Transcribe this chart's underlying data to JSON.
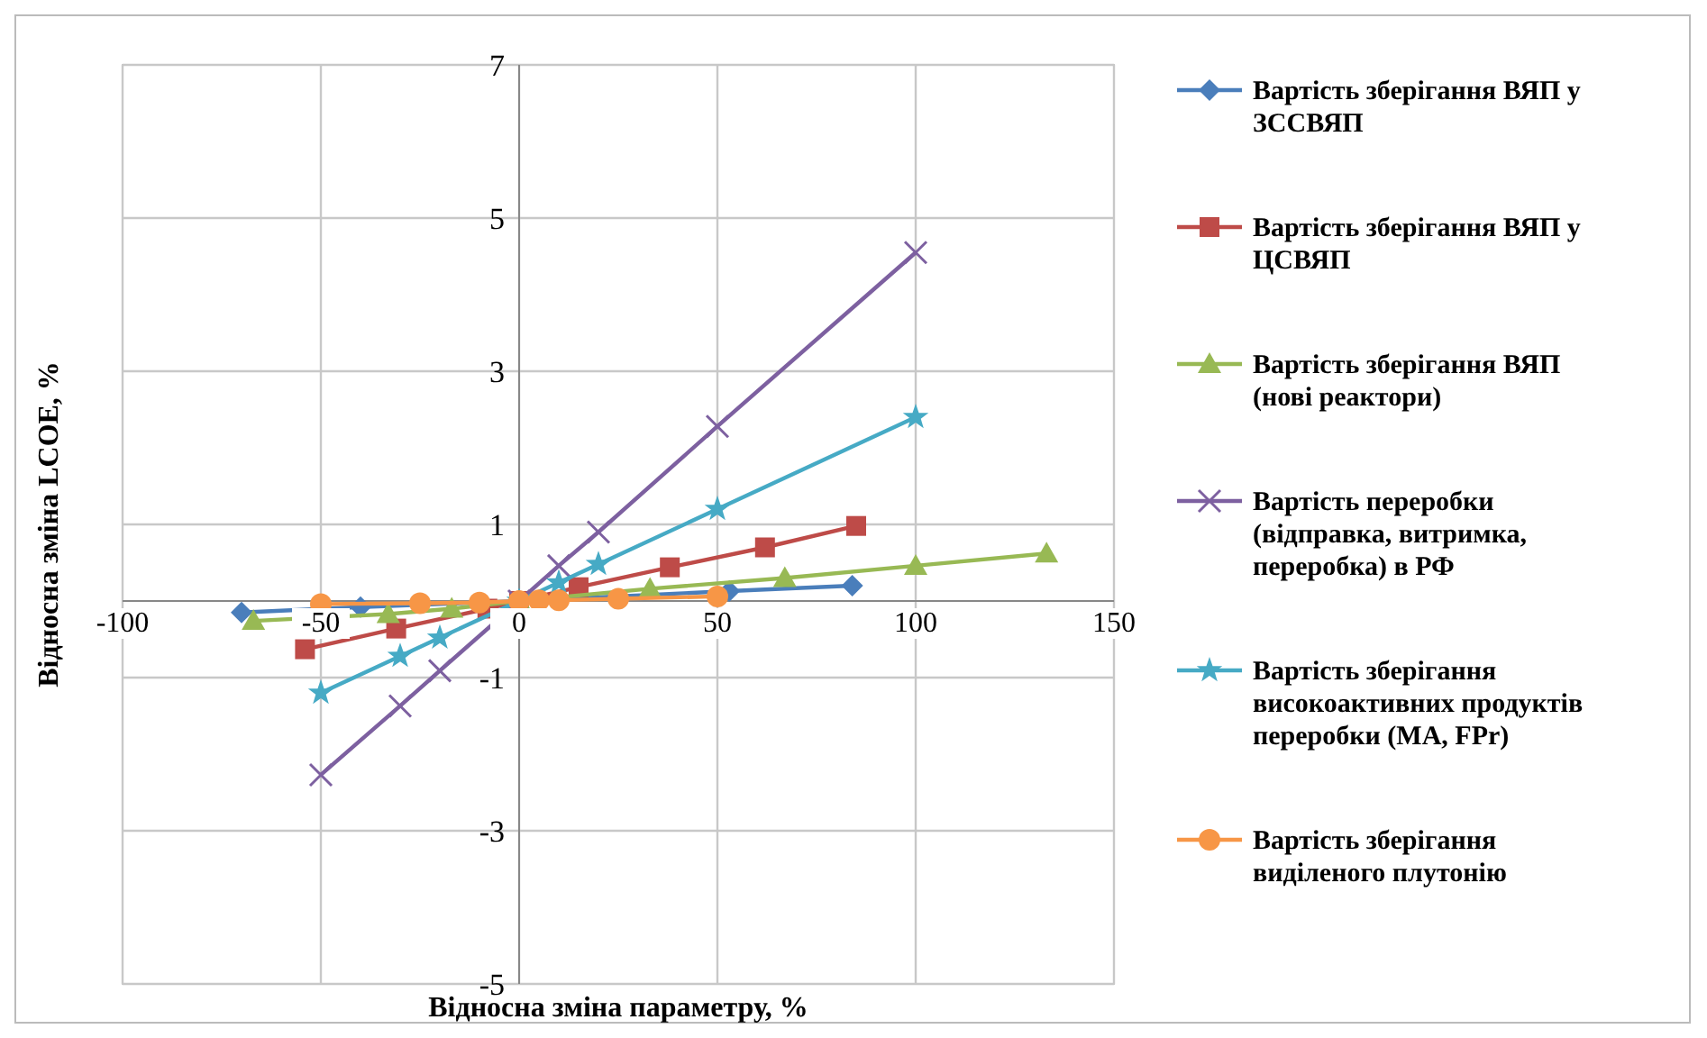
{
  "chart_data": {
    "type": "line",
    "xlabel": "Відносна зміна параметру, %",
    "ylabel": "Відносна зміна LCOE, %",
    "xlim": [
      -100,
      150
    ],
    "xticks": [
      -100,
      -50,
      0,
      50,
      100,
      150
    ],
    "ylim": [
      -5,
      7
    ],
    "yticks": [
      -5,
      -3,
      -1,
      1,
      3,
      5,
      7
    ],
    "grid": true,
    "legend": "right",
    "line_style": "solid",
    "series": [
      {
        "name": "Вартість зберігання ВЯП у ЗССВЯП",
        "color": "#4a7ebb",
        "marker": "diamond",
        "x": [
          -70,
          -40,
          0,
          53,
          84
        ],
        "values": [
          -0.15,
          -0.08,
          0,
          0.13,
          0.2
        ]
      },
      {
        "name": "Вартість зберігання ВЯП у ЦСВЯП",
        "color": "#be4b48",
        "marker": "square",
        "x": [
          -54,
          -31,
          -8,
          0,
          15,
          38,
          62,
          85
        ],
        "values": [
          -0.63,
          -0.36,
          -0.1,
          0,
          0.18,
          0.44,
          0.7,
          0.98
        ]
      },
      {
        "name": "Вартість зберігання ВЯП (нові реактори)",
        "color": "#98b954",
        "marker": "triangle",
        "x": [
          -67,
          -33,
          -17,
          0,
          33,
          67,
          100,
          133
        ],
        "values": [
          -0.26,
          -0.17,
          -0.1,
          0,
          0.16,
          0.3,
          0.46,
          0.62
        ]
      },
      {
        "name": "Вартість переробки (відправка, витримка, переробка) в РФ",
        "color": "#7d60a0",
        "marker": "cross",
        "x": [
          -50,
          -30,
          -20,
          0,
          10,
          20,
          50,
          100
        ],
        "values": [
          -2.27,
          -1.37,
          -0.91,
          0,
          0.46,
          0.9,
          2.28,
          4.55
        ]
      },
      {
        "name": "Вартість зберігання високоактивних продуктів переробки (МА, FPr)",
        "color": "#46aac5",
        "marker": "star",
        "x": [
          -50,
          -30,
          -20,
          0,
          10,
          20,
          50,
          100
        ],
        "values": [
          -1.2,
          -0.72,
          -0.48,
          0,
          0.24,
          0.48,
          1.2,
          2.4
        ]
      },
      {
        "name": "Вартість зберігання виділеного плутонію",
        "color": "#f79646",
        "marker": "circle",
        "x": [
          -50,
          -25,
          -10,
          0,
          5,
          10,
          25,
          50
        ],
        "values": [
          -0.04,
          -0.03,
          -0.02,
          0,
          0.01,
          0.01,
          0.03,
          0.06
        ]
      }
    ]
  }
}
